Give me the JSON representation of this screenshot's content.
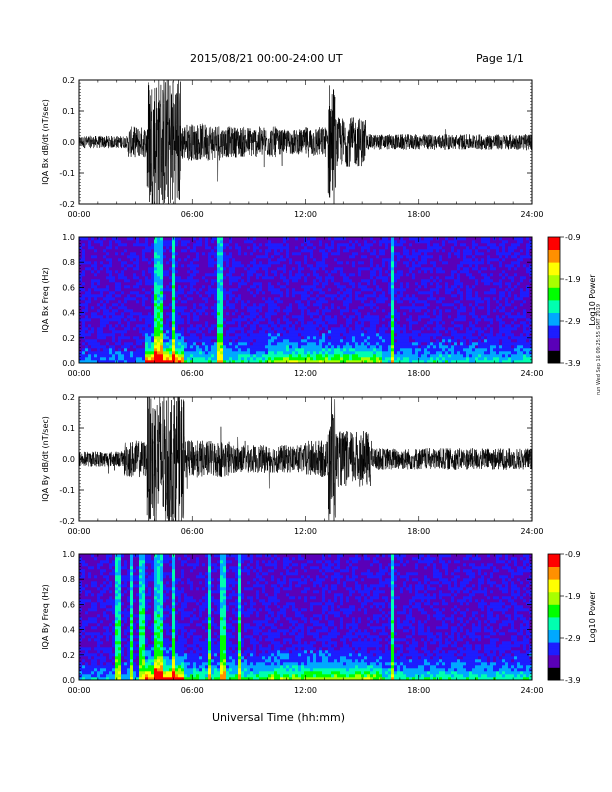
{
  "header": {
    "title": "2015/08/21  00:00-24:00 UT",
    "page": "Page 1/1"
  },
  "x_axis_title": "Universal Time (hh:mm)",
  "side_stamp": "run Wed Sep 16 09:25:55 GMT 2019",
  "colors": {
    "trace": "#000000",
    "colorbar": [
      "#000000",
      "#5a00b8",
      "#1d1dff",
      "#00a8ff",
      "#00ffb0",
      "#00ff00",
      "#a8ff00",
      "#ffff00",
      "#ff9000",
      "#ff0000"
    ]
  },
  "chart_data": [
    {
      "type": "line",
      "ylabel": "IQA Bx dB/dt (nT/sec)",
      "x_ticks": [
        "00:00",
        "06:00",
        "12:00",
        "18:00",
        "24:00"
      ],
      "y_ticks": [
        "-0.2",
        "-0.1",
        "0.0",
        "0.1",
        "0.2"
      ],
      "xlim": [
        0,
        24
      ],
      "ylim": [
        -0.2,
        0.2
      ],
      "activity": [
        {
          "t0": 0,
          "t1": 2.6,
          "amp": 0.02
        },
        {
          "t0": 2.6,
          "t1": 3.6,
          "amp": 0.05
        },
        {
          "t0": 3.6,
          "t1": 4.4,
          "amp": 0.22
        },
        {
          "t0": 4.4,
          "t1": 5.4,
          "amp": 0.22
        },
        {
          "t0": 5.4,
          "t1": 7.5,
          "amp": 0.06
        },
        {
          "t0": 7.5,
          "t1": 10.5,
          "amp": 0.05
        },
        {
          "t0": 10.5,
          "t1": 12.0,
          "amp": 0.04
        },
        {
          "t0": 12.0,
          "t1": 13.2,
          "amp": 0.05
        },
        {
          "t0": 13.2,
          "t1": 13.6,
          "amp": 0.2
        },
        {
          "t0": 13.6,
          "t1": 15.2,
          "amp": 0.08
        },
        {
          "t0": 15.2,
          "t1": 24,
          "amp": 0.025
        }
      ]
    },
    {
      "type": "heatmap",
      "ylabel": "IQA Bx Freq (Hz)",
      "x_ticks": [
        "00:00",
        "06:00",
        "12:00",
        "18:00",
        "24:00"
      ],
      "y_ticks": [
        "0.0",
        "0.2",
        "0.4",
        "0.6",
        "0.8",
        "1.0"
      ],
      "xlim": [
        0,
        24
      ],
      "ylim": [
        0,
        1
      ],
      "colorbar": {
        "label": "Log10 Power",
        "ticks": [
          "-0.9",
          "-1.9",
          "-2.9",
          "-3.9"
        ],
        "range": [
          -3.9,
          -0.9
        ]
      },
      "bursts": [
        4.1,
        4.3,
        5.0,
        7.5,
        16.6
      ],
      "band_intensity": [
        {
          "t0": 0,
          "t1": 3.5,
          "level": 0.15
        },
        {
          "t0": 3.5,
          "t1": 5.5,
          "level": 0.9
        },
        {
          "t0": 5.5,
          "t1": 10,
          "level": 0.35
        },
        {
          "t0": 10,
          "t1": 16,
          "level": 0.55
        },
        {
          "t0": 16,
          "t1": 24,
          "level": 0.3
        }
      ]
    },
    {
      "type": "line",
      "ylabel": "IQA By dB/dt (nT/sec)",
      "x_ticks": [
        "00:00",
        "06:00",
        "12:00",
        "18:00",
        "24:00"
      ],
      "y_ticks": [
        "-0.2",
        "-0.1",
        "0.0",
        "0.1",
        "0.2"
      ],
      "xlim": [
        0,
        24
      ],
      "ylim": [
        -0.2,
        0.2
      ],
      "activity": [
        {
          "t0": 0,
          "t1": 2.4,
          "amp": 0.025
        },
        {
          "t0": 2.4,
          "t1": 3.6,
          "amp": 0.06
        },
        {
          "t0": 3.6,
          "t1": 5.6,
          "amp": 0.22
        },
        {
          "t0": 5.6,
          "t1": 8.0,
          "amp": 0.06
        },
        {
          "t0": 8.0,
          "t1": 12.0,
          "amp": 0.045
        },
        {
          "t0": 12.0,
          "t1": 13.2,
          "amp": 0.06
        },
        {
          "t0": 13.2,
          "t1": 13.6,
          "amp": 0.22
        },
        {
          "t0": 13.6,
          "t1": 15.5,
          "amp": 0.09
        },
        {
          "t0": 15.5,
          "t1": 24,
          "amp": 0.035
        }
      ]
    },
    {
      "type": "heatmap",
      "ylabel": "IQA By Freq (Hz)",
      "x_ticks": [
        "00:00",
        "06:00",
        "12:00",
        "18:00",
        "24:00"
      ],
      "y_ticks": [
        "0.0",
        "0.2",
        "0.4",
        "0.6",
        "0.8",
        "1.0"
      ],
      "xlim": [
        0,
        24
      ],
      "ylim": [
        0,
        1
      ],
      "colorbar": {
        "label": "Log10 Power",
        "ticks": [
          "-0.9",
          "-1.9",
          "-2.9",
          "-3.9"
        ],
        "range": [
          -3.9,
          -0.9
        ]
      },
      "bursts": [
        2.1,
        2.8,
        3.3,
        4.1,
        4.3,
        5.0,
        6.9,
        7.6,
        8.5,
        16.6
      ],
      "band_intensity": [
        {
          "t0": 0,
          "t1": 3.5,
          "level": 0.2
        },
        {
          "t0": 3.5,
          "t1": 5.5,
          "level": 0.9
        },
        {
          "t0": 5.5,
          "t1": 10,
          "level": 0.4
        },
        {
          "t0": 10,
          "t1": 16,
          "level": 0.55
        },
        {
          "t0": 16,
          "t1": 24,
          "level": 0.35
        }
      ]
    }
  ]
}
